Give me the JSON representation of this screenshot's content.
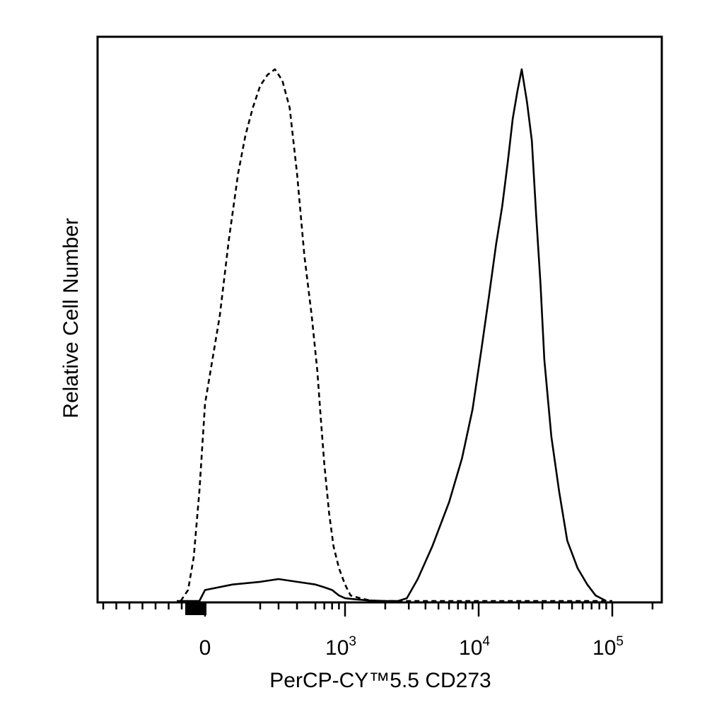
{
  "chart_data": {
    "type": "line",
    "title": "",
    "xlabel": "PerCP-CY™5.5 CD273",
    "ylabel": "Relative Cell Number",
    "x_scale": "biexponential",
    "xlim": [
      -600,
      200000
    ],
    "ylim": [
      0,
      105
    ],
    "grid": false,
    "legend": "none",
    "y_ticks": "none",
    "x_tick_labels": [
      {
        "value": 0,
        "base": "0",
        "exp": ""
      },
      {
        "value": 1000,
        "base": "10",
        "exp": "3"
      },
      {
        "value": 10000,
        "base": "10",
        "exp": "4"
      },
      {
        "value": 100000,
        "base": "10",
        "exp": "5"
      }
    ],
    "series": [
      {
        "style": "dashed",
        "color": "#000000",
        "x": [
          -430,
          -300,
          -200,
          -100,
          0,
          80,
          130,
          180,
          220,
          260,
          300,
          340,
          380,
          420,
          460,
          500,
          540,
          580,
          620,
          660,
          700,
          760,
          820,
          900,
          1000,
          1100,
          1300,
          1600,
          2000,
          3000,
          10000,
          100000
        ],
        "y": [
          0,
          2,
          8,
          20,
          36,
          52,
          66,
          78,
          85,
          90,
          94,
          96,
          97,
          95,
          90,
          78,
          63,
          52,
          42,
          33,
          25,
          16,
          10,
          6,
          3,
          1,
          0.5,
          0,
          0,
          0,
          0,
          0
        ]
      },
      {
        "style": "solid",
        "color": "#000000",
        "x": [
          -500,
          -100,
          0,
          150,
          300,
          400,
          500,
          600,
          700,
          800,
          900,
          1000,
          1200,
          1500,
          2000,
          2500,
          2900,
          3500,
          4500,
          6000,
          7500,
          9000,
          10500,
          12000,
          13500,
          15000,
          16500,
          18000,
          19500,
          21000,
          23000,
          25000,
          27000,
          29000,
          31000,
          35000,
          40000,
          46000,
          55000,
          65000,
          75000,
          90000
        ],
        "y": [
          0,
          0,
          2,
          3,
          3.5,
          4,
          3.5,
          3,
          2.5,
          2,
          1,
          0.5,
          0.3,
          0.1,
          0,
          0,
          0.5,
          4,
          10,
          18,
          26,
          35,
          46,
          56,
          65,
          72,
          80,
          88,
          93,
          97,
          91,
          84,
          70,
          58,
          44,
          30,
          20,
          11,
          6,
          3,
          1,
          0
        ]
      }
    ]
  }
}
